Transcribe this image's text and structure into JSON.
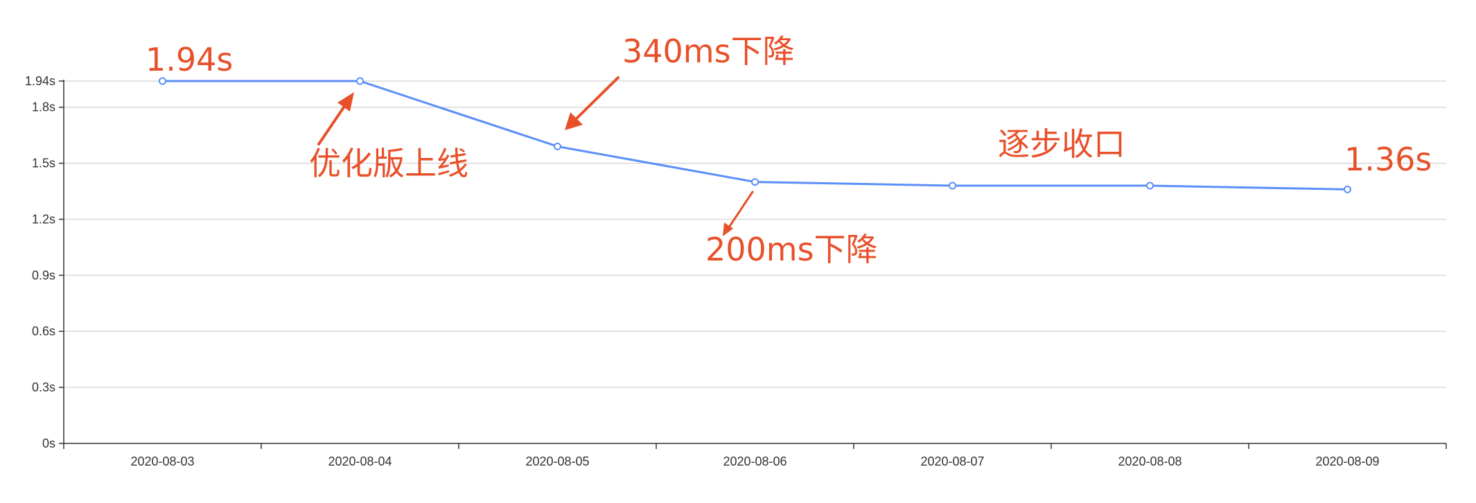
{
  "chart_data": {
    "type": "line",
    "title": "",
    "xlabel": "",
    "ylabel": "",
    "categories": [
      "2020-08-03",
      "2020-08-04",
      "2020-08-05",
      "2020-08-06",
      "2020-08-07",
      "2020-08-08",
      "2020-08-09"
    ],
    "series": [
      {
        "values": [
          1.94,
          1.94,
          1.59,
          1.4,
          1.38,
          1.38,
          1.36
        ],
        "color": "#5b8ff9"
      }
    ],
    "ylim": [
      0,
      1.94
    ],
    "yticks": [
      {
        "value": 0,
        "label": "0s"
      },
      {
        "value": 0.3,
        "label": "0.3s"
      },
      {
        "value": 0.6,
        "label": "0.6s"
      },
      {
        "value": 0.9,
        "label": "0.9s"
      },
      {
        "value": 1.2,
        "label": "1.2s"
      },
      {
        "value": 1.5,
        "label": "1.5s"
      },
      {
        "value": 1.8,
        "label": "1.8s"
      },
      {
        "value": 1.94,
        "label": "1.94s"
      }
    ],
    "grid": true,
    "legend": "none",
    "annotations": [
      {
        "text": "1.94s"
      },
      {
        "text": "优化版上线"
      },
      {
        "text": "340ms下降"
      },
      {
        "text": "200ms下降"
      },
      {
        "text": "逐步收口"
      },
      {
        "text": "1.36s"
      }
    ],
    "colors": {
      "line": "#5b8ff9",
      "annotation": "#e8502a",
      "grid": "#d9d9d9",
      "axis": "#333333"
    }
  }
}
